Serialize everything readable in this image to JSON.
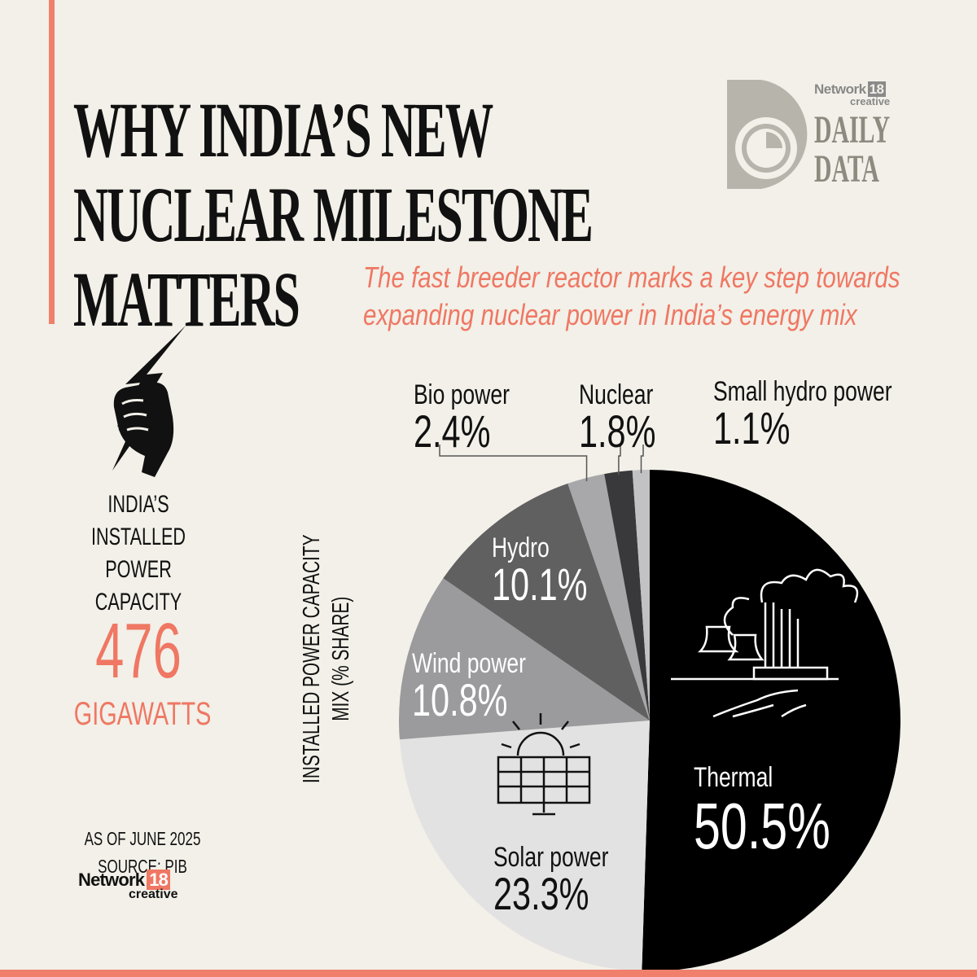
{
  "headline": {
    "line1": "WHY INDIA’S NEW",
    "line2": "NUCLEAR MILESTONE",
    "line3": "MATTERS"
  },
  "subtitle": {
    "line1": "The fast breeder reactor marks a key step towards",
    "line2": "expanding nuclear power in India’s energy mix"
  },
  "brand": {
    "network": "Network",
    "network_num": "18",
    "creative": "creative",
    "daily": "DAILY",
    "data": "DATA"
  },
  "capacity": {
    "label_line1": "INDIA’S",
    "label_line2": "INSTALLED",
    "label_line3": "POWER",
    "label_line4": "CAPACITY",
    "value": "476",
    "unit": "GIGAWATTS"
  },
  "footnote": {
    "as_of": "AS OF JUNE 2025",
    "source": "SOURCE: PIB"
  },
  "footer_logo": {
    "network": "Network",
    "network_num": "18",
    "creative": "creative"
  },
  "colors": {
    "accent": "#f07f6b",
    "accent_text": "#ef7763",
    "background": "#f2f0e8"
  },
  "chart_data": {
    "type": "pie",
    "title": "INSTALLED POWER CAPACITY MIX (% SHARE)",
    "title_line1": "INSTALLED POWER CAPACITY",
    "title_line2": "MIX (% SHARE)",
    "start": "12 o'clock",
    "direction": "clockwise",
    "slices": [
      {
        "label": "Thermal",
        "value": 50.5,
        "display": "50.5%",
        "color": "#000000",
        "text_color": "#ffffff"
      },
      {
        "label": "Solar power",
        "value": 23.3,
        "display": "23.3%",
        "color": "#e3e2e2",
        "text_color": "#111111"
      },
      {
        "label": "Wind power",
        "value": 10.8,
        "display": "10.8%",
        "color": "#9b9a9c",
        "text_color": "#ffffff"
      },
      {
        "label": "Hydro",
        "value": 10.1,
        "display": "10.1%",
        "color": "#606061",
        "text_color": "#ffffff"
      },
      {
        "label": "Bio power",
        "value": 2.4,
        "display": "2.4%",
        "color": "#a8a7a9",
        "text_color": "#111111"
      },
      {
        "label": "Nuclear",
        "value": 1.8,
        "display": "1.8%",
        "color": "#39393b",
        "text_color": "#111111"
      },
      {
        "label": "Small hydro power",
        "value": 1.1,
        "display": "1.1%",
        "color": "#c2c1c3",
        "text_color": "#111111"
      }
    ]
  }
}
